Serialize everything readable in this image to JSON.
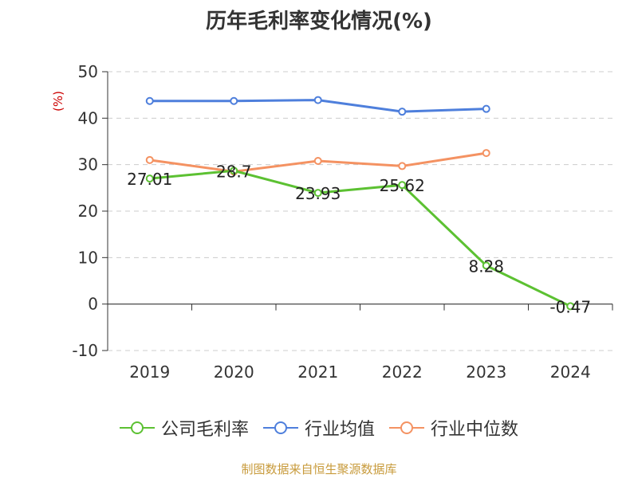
{
  "chart_data": {
    "type": "line",
    "title": "历年毛利率变化情况(%)",
    "ylabel": "(%)",
    "xlabel": "",
    "categories": [
      "2019",
      "2020",
      "2021",
      "2022",
      "2023",
      "2024"
    ],
    "ylim": [
      -10,
      50
    ],
    "yticks": [
      -10,
      0,
      10,
      20,
      30,
      40,
      50
    ],
    "grid": true,
    "legend": "bottom",
    "series": [
      {
        "name": "公司毛利率",
        "color": "#5cc132",
        "values": [
          27.01,
          28.7,
          23.93,
          25.62,
          8.28,
          -0.47
        ],
        "labels": [
          "27.01",
          "28.7",
          "23.93",
          "25.62",
          "8.28",
          "-0.47"
        ]
      },
      {
        "name": "行业均值",
        "color": "#4e7fdc",
        "values": [
          43.7,
          43.7,
          43.9,
          41.4,
          42.0,
          null
        ]
      },
      {
        "name": "行业中位数",
        "color": "#f49262",
        "values": [
          31.0,
          28.5,
          30.8,
          29.7,
          32.5,
          null
        ]
      }
    ]
  },
  "footer": {
    "text": "制图数据来自恒生聚源数据库",
    "color": "#c89b3c"
  },
  "ylabel_color": "#cc0000"
}
